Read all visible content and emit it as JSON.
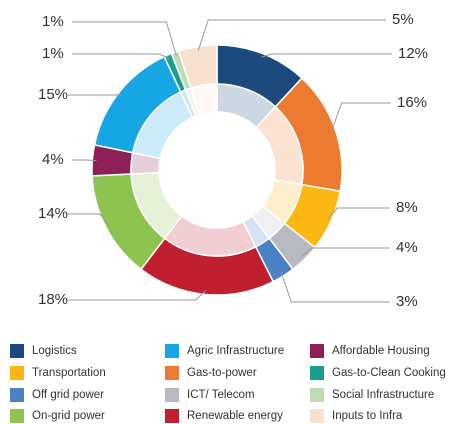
{
  "chart_data": {
    "type": "donut",
    "categories": [
      "Logistics",
      "Gas-to-power",
      "Transportation",
      "ICT/ Telecom",
      "Off grid power",
      "Renewable energy",
      "On-grid power",
      "Affordable Housing",
      "Agric Infrastructure",
      "Gas-to-Clean Cooking",
      "Social Infrastructure",
      "Inputs to Infra"
    ],
    "values": [
      12,
      16,
      8,
      4,
      3,
      18,
      14,
      4,
      15,
      1,
      1,
      5
    ],
    "value_labels": [
      "12%",
      "16%",
      "8%",
      "4%",
      "3%",
      "18%",
      "14%",
      "4%",
      "15%",
      "1%",
      "1%",
      "5%"
    ],
    "colors": [
      "#1d4a7c",
      "#ec7a2f",
      "#fbb815",
      "#b9b9c3",
      "#4a80c4",
      "#c01f2f",
      "#8dc44f",
      "#8e1f57",
      "#16a6e4",
      "#1a9f8f",
      "#bfdbb6",
      "#f8e1cf"
    ]
  }
}
